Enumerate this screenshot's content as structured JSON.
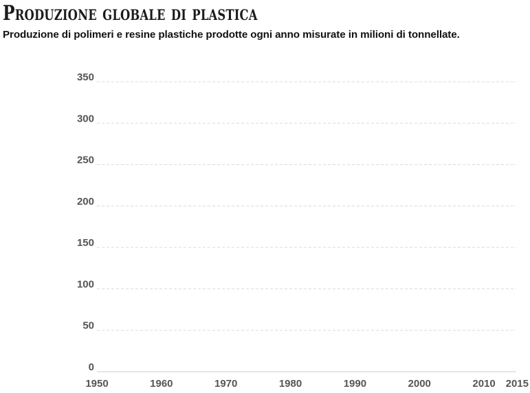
{
  "header": {
    "title": "Produzione globale di plastica",
    "subtitle": "Produzione di polimeri e resine plastiche prodotte ogni anno misurate in milioni di tonnellate."
  },
  "chart_data": {
    "type": "line",
    "title": "Produzione globale di plastica",
    "subtitle": "Produzione di polimeri e resine plastiche prodotte ogni anno misurate in milioni di tonnellate.",
    "xlabel": "",
    "ylabel": "",
    "xlim": [
      1950,
      2015
    ],
    "ylim": [
      0,
      350
    ],
    "x_ticks": [
      1950,
      1960,
      1970,
      1980,
      1990,
      2000,
      2010,
      2015
    ],
    "y_ticks": [
      0,
      50,
      100,
      150,
      200,
      250,
      300,
      350
    ],
    "grid": "horizontal dashed",
    "series": []
  },
  "colors": {
    "grid": "#d9d9d9",
    "tick_text": "#555555",
    "title_text": "#1b1b1b"
  }
}
